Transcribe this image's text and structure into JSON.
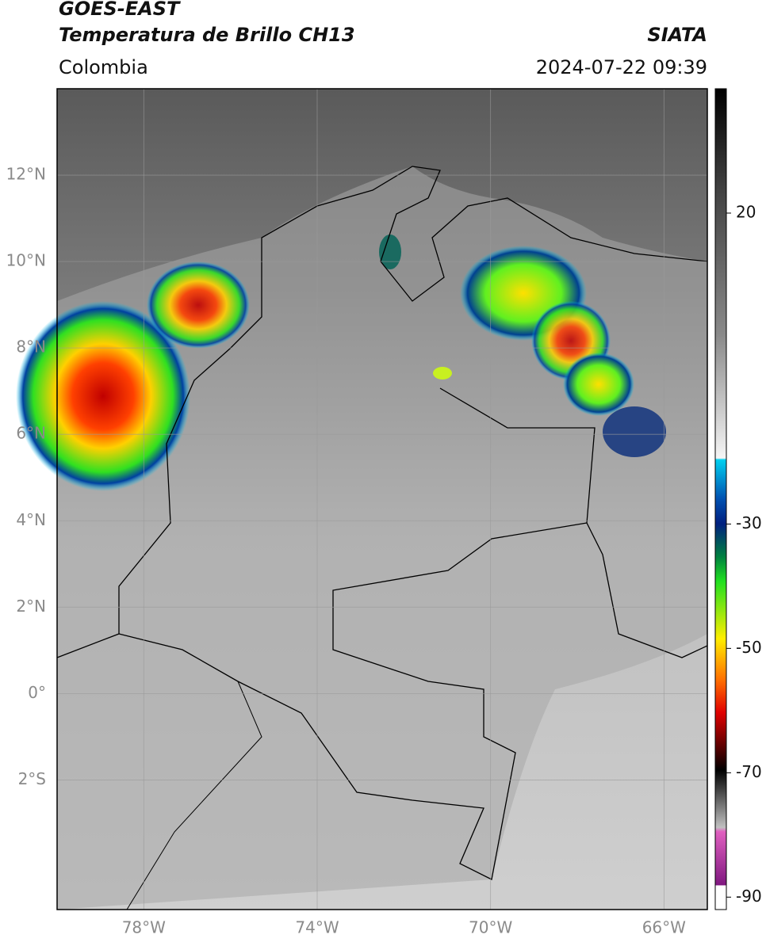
{
  "header": {
    "satellite": "GOES-EAST",
    "product": "Temperatura de Brillo CH13",
    "source": "SIATA",
    "region": "Colombia",
    "datetime": "2024-07-22 09:39"
  },
  "map": {
    "lon_range": [
      -80,
      -65
    ],
    "lat_range": [
      -5,
      14
    ],
    "lat_ticks": [
      {
        "value": 12,
        "label": "12°N"
      },
      {
        "value": 10,
        "label": "10°N"
      },
      {
        "value": 8,
        "label": "8°N"
      },
      {
        "value": 6,
        "label": "6°N"
      },
      {
        "value": 4,
        "label": "4°N"
      },
      {
        "value": 2,
        "label": "2°N"
      },
      {
        "value": 0,
        "label": "0°"
      },
      {
        "value": -2,
        "label": "2°S"
      }
    ],
    "lon_ticks": [
      {
        "value": -78,
        "label": "78°W"
      },
      {
        "value": -74,
        "label": "74°W"
      },
      {
        "value": -70,
        "label": "70°W"
      },
      {
        "value": -66,
        "label": "66°W"
      }
    ],
    "grid": true
  },
  "colorbar": {
    "range": [
      -92,
      40
    ],
    "ticks": [
      20,
      -30,
      -50,
      -70,
      -90
    ]
  }
}
